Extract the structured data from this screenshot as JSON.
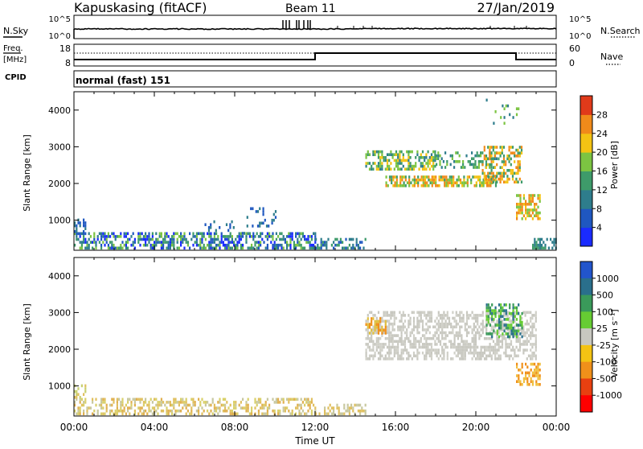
{
  "header": {
    "station": "Kapuskasing (fitACF)",
    "beam": "Beam 11",
    "date": "27/Jan/2019"
  },
  "noise_panel": {
    "left_label": "N.Sky",
    "left_ticks": [
      "10^5",
      "10^0"
    ],
    "right_ticks": [
      "10^5",
      "10^0"
    ],
    "right_label": "N.Search"
  },
  "freq_panel": {
    "left_label_1": "Freq.",
    "left_label_2": "[MHz]",
    "left_ticks": [
      "18",
      "8"
    ],
    "right_ticks": [
      "60",
      "0"
    ],
    "right_label": "Nave",
    "cpid_label": "CPID"
  },
  "cpid_text": "normal (fast) 151",
  "chart_data": [
    {
      "type": "heatmap",
      "name": "power",
      "ylabel": "Slant Range [km]",
      "xlabel": "Time UT",
      "x_ticks": [
        "00:00",
        "04:00",
        "08:00",
        "12:00",
        "16:00",
        "20:00",
        "00:00"
      ],
      "xlim_hours": [
        0,
        24
      ],
      "y_ticks": [
        "1000",
        "2000",
        "3000",
        "4000"
      ],
      "ylim_km": [
        180,
        4500
      ],
      "colorbar": {
        "label": "Power [dB]",
        "ticks": [
          "4",
          "8",
          "12",
          "16",
          "20",
          "24",
          "28"
        ],
        "range": [
          0,
          32
        ],
        "colors": [
          "#1a2bff",
          "#1f57c0",
          "#2e7d8c",
          "#3e9b6a",
          "#7cc442",
          "#f3c313",
          "#f08a1a",
          "#e03a1a"
        ]
      },
      "regions": [
        {
          "t0": 0.0,
          "t1": 12.0,
          "r0": 200,
          "r1": 650,
          "density": 0.55,
          "values": [
            3,
            6,
            9,
            12,
            16
          ]
        },
        {
          "t0": 0.0,
          "t1": 0.6,
          "r0": 650,
          "r1": 1000,
          "density": 0.45,
          "values": [
            4,
            6,
            8
          ]
        },
        {
          "t0": 6.5,
          "t1": 8.5,
          "r0": 600,
          "r1": 1000,
          "density": 0.15,
          "values": [
            6,
            10
          ]
        },
        {
          "t0": 8.5,
          "t1": 10.0,
          "r0": 800,
          "r1": 1300,
          "density": 0.15,
          "values": [
            6,
            10
          ]
        },
        {
          "t0": 12.0,
          "t1": 14.5,
          "r0": 200,
          "r1": 450,
          "density": 0.4,
          "values": [
            6,
            10,
            14
          ]
        },
        {
          "t0": 14.5,
          "t1": 18.0,
          "r0": 2350,
          "r1": 2900,
          "density": 0.55,
          "values": [
            8,
            12,
            16,
            20
          ]
        },
        {
          "t0": 15.5,
          "t1": 21.0,
          "r0": 1900,
          "r1": 2200,
          "density": 0.75,
          "values": [
            12,
            16,
            20,
            24
          ]
        },
        {
          "t0": 18.0,
          "t1": 21.0,
          "r0": 2400,
          "r1": 2800,
          "density": 0.35,
          "values": [
            10,
            14,
            18
          ]
        },
        {
          "t0": 20.3,
          "t1": 22.3,
          "r0": 2000,
          "r1": 3000,
          "density": 0.5,
          "values": [
            14,
            20,
            26
          ]
        },
        {
          "t0": 22.0,
          "t1": 23.2,
          "r0": 1000,
          "r1": 1700,
          "density": 0.6,
          "values": [
            16,
            20,
            24
          ]
        },
        {
          "t0": 20.5,
          "t1": 22.2,
          "r0": 3600,
          "r1": 4300,
          "density": 0.1,
          "values": [
            10,
            16
          ]
        },
        {
          "t0": 22.8,
          "t1": 24.0,
          "r0": 200,
          "r1": 450,
          "density": 0.5,
          "values": [
            8,
            12
          ]
        }
      ]
    },
    {
      "type": "heatmap",
      "name": "velocity",
      "ylabel": "Slant Range [km]",
      "xlabel": "Time UT",
      "x_ticks": [
        "00:00",
        "04:00",
        "08:00",
        "12:00",
        "16:00",
        "20:00",
        "00:00"
      ],
      "xlim_hours": [
        0,
        24
      ],
      "y_ticks": [
        "1000",
        "2000",
        "3000",
        "4000"
      ],
      "ylim_km": [
        180,
        4500
      ],
      "colorbar": {
        "label": "Velocity [m s⁻¹]",
        "ticks": [
          "1000",
          "500",
          "100",
          "25",
          "-25",
          "-100",
          "-500",
          "-1000"
        ],
        "colors": [
          "#2255cc",
          "#2a6f8c",
          "#3a9a5a",
          "#66cc33",
          "#c8c8c0",
          "#f3c313",
          "#f0901a",
          "#e84010",
          "#ff0000"
        ]
      },
      "regions": [
        {
          "t0": 0.0,
          "t1": 12.0,
          "r0": 200,
          "r1": 650,
          "density": 0.45,
          "values": [
            "#d9d06a",
            "#e0c060",
            "#c8c8a0",
            "#e0b050"
          ]
        },
        {
          "t0": 0.0,
          "t1": 0.6,
          "r0": 650,
          "r1": 1000,
          "density": 0.4,
          "values": [
            "#c8d070",
            "#e0c060"
          ]
        },
        {
          "t0": 14.5,
          "t1": 23.0,
          "r0": 1700,
          "r1": 3000,
          "density": 0.55,
          "values": [
            "#c8c8c0",
            "#c8c8c0",
            "#d0d0c8"
          ]
        },
        {
          "t0": 14.5,
          "t1": 15.5,
          "r0": 2400,
          "r1": 2800,
          "density": 0.6,
          "values": [
            "#f0901a",
            "#e0c040"
          ]
        },
        {
          "t0": 20.5,
          "t1": 22.3,
          "r0": 2300,
          "r1": 3200,
          "density": 0.5,
          "values": [
            "#3a9a5a",
            "#66cc33",
            "#2a6f8c"
          ]
        },
        {
          "t0": 22.0,
          "t1": 23.2,
          "r0": 1000,
          "r1": 1600,
          "density": 0.5,
          "values": [
            "#f0c040",
            "#f0901a"
          ]
        },
        {
          "t0": 12.0,
          "t1": 14.5,
          "r0": 200,
          "r1": 450,
          "density": 0.35,
          "values": [
            "#e0c060",
            "#c8c8a0"
          ]
        }
      ]
    }
  ]
}
